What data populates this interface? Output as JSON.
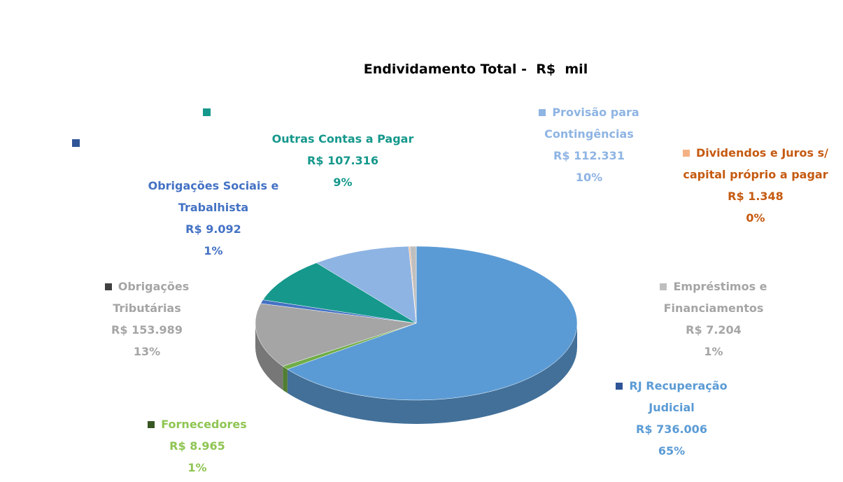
{
  "chart_data": {
    "type": "pie",
    "title": "Endividamento Total -  R$  mil",
    "categories": [
      "RJ Recuperação Judicial",
      "Fornecedores",
      "Obrigações Tributárias",
      "Obrigações Sociais e Trabalhista",
      "Outras Contas a Pagar",
      "Provisão para Contingências",
      "Dividendos e Juros s/ capital próprio a pagar",
      "Empréstimos e Financiamentos"
    ],
    "values": [
      736006,
      8965,
      153989,
      9092,
      107316,
      112331,
      1348,
      7204
    ],
    "value_labels": [
      "R$ 736.006",
      "R$ 8.965",
      "R$ 153.989",
      "R$ 9.092",
      "R$ 107.316",
      "R$ 112.331",
      "R$ 1.348",
      "R$ 7.204"
    ],
    "percentages": [
      65,
      1,
      13,
      1,
      9,
      10,
      0,
      1
    ],
    "percentage_labels": [
      "65%",
      "1%",
      "13%",
      "1%",
      "9%",
      "10%",
      "0%",
      "1%"
    ],
    "colors": [
      "#5b9bd5",
      "#70ad47",
      "#a5a5a5",
      "#4472c4",
      "#16988c",
      "#8eb4e3",
      "#f4b183",
      "#bfbfbf"
    ]
  }
}
